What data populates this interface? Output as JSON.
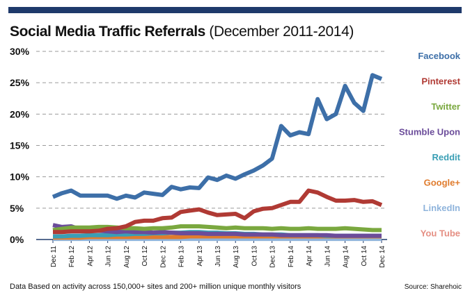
{
  "title": "Social Media Traffic Referrals",
  "subtitle": "(December 2011-2014)",
  "footer": {
    "note": "Data  Based on activity across 150,000+ sites and 200+ million unique monthly visitors",
    "source": "Source: Sharehoic"
  },
  "chart_data": {
    "type": "line",
    "title": "Social Media Traffic Referrals",
    "subtitle": "(December 2011-2014)",
    "xlabel": "",
    "ylabel": "",
    "ylim": [
      0,
      30
    ],
    "yticks": [
      "0%",
      "5%",
      "10%",
      "15%",
      "20%",
      "25%",
      "30%"
    ],
    "grid": "horizontal dashed",
    "legend_position": "right",
    "x_tick_labels": [
      "Dec 11",
      "Feb 12",
      "Apr 12",
      "Jun 12",
      "Aug 12",
      "Oct 12",
      "Dec 12",
      "Feb 13",
      "Apr 13",
      "Jun 13",
      "Aug 13",
      "Oct 13",
      "Dec 13",
      "Feb 14",
      "Apr 14",
      "Jun 14",
      "Aug 14",
      "Oct 14",
      "Dec 14"
    ],
    "x": [
      "Dec 11",
      "Jan 12",
      "Feb 12",
      "Mar 12",
      "Apr 12",
      "May 12",
      "Jun 12",
      "Jul 12",
      "Aug 12",
      "Sep 12",
      "Oct 12",
      "Nov 12",
      "Dec 12",
      "Jan 13",
      "Feb 13",
      "Mar 13",
      "Apr 13",
      "May 13",
      "Jun 13",
      "Jul 13",
      "Aug 13",
      "Sep 13",
      "Oct 13",
      "Nov 13",
      "Dec 13",
      "Jan 14",
      "Feb 14",
      "Mar 14",
      "Apr 14",
      "May 14",
      "Jun 14",
      "Jul 14",
      "Aug 14",
      "Sep 14",
      "Oct 14",
      "Nov 14",
      "Dec 14"
    ],
    "series": [
      {
        "name": "Facebook",
        "color": "#3d6fa8",
        "values": [
          6.8,
          7.4,
          7.8,
          7.0,
          7.0,
          7.0,
          7.0,
          6.5,
          7.0,
          6.7,
          7.5,
          7.3,
          7.1,
          8.4,
          8.0,
          8.3,
          8.2,
          9.9,
          9.5,
          10.2,
          9.7,
          10.4,
          11.0,
          11.8,
          12.9,
          18.1,
          16.6,
          17.1,
          16.8,
          22.4,
          19.2,
          20.0,
          24.5,
          21.8,
          20.5,
          26.2,
          25.6
        ]
      },
      {
        "name": "Pinterest",
        "color": "#b03a34",
        "values": [
          1.2,
          1.2,
          1.3,
          1.3,
          1.3,
          1.4,
          1.7,
          1.8,
          2.1,
          2.8,
          3.0,
          3.0,
          3.4,
          3.5,
          4.4,
          4.6,
          4.8,
          4.3,
          3.9,
          4.0,
          4.1,
          3.4,
          4.5,
          4.9,
          5.0,
          5.5,
          6.0,
          6.0,
          7.8,
          7.5,
          6.8,
          6.2,
          6.2,
          6.3,
          6.0,
          6.1,
          5.5
        ]
      },
      {
        "name": "Twitter",
        "color": "#7aa83f",
        "values": [
          1.5,
          1.7,
          1.9,
          1.9,
          1.9,
          2.0,
          2.0,
          1.9,
          1.8,
          1.8,
          1.7,
          1.8,
          1.8,
          1.9,
          2.1,
          2.1,
          2.1,
          2.0,
          1.9,
          1.8,
          1.9,
          1.8,
          1.8,
          1.8,
          1.7,
          1.8,
          1.7,
          1.7,
          1.8,
          1.7,
          1.7,
          1.7,
          1.8,
          1.7,
          1.6,
          1.5,
          1.5
        ]
      },
      {
        "name": "Stumble Upon",
        "color": "#6b4c9a",
        "values": [
          2.3,
          2.0,
          2.1,
          1.6,
          1.5,
          1.4,
          1.3,
          1.2,
          1.3,
          1.2,
          1.2,
          1.1,
          1.2,
          1.1,
          1.0,
          1.0,
          1.0,
          0.9,
          0.9,
          0.9,
          0.9,
          0.8,
          0.8,
          0.8,
          0.8,
          0.7,
          0.7,
          0.7,
          0.7,
          0.7,
          0.7,
          0.6,
          0.6,
          0.6,
          0.6,
          0.6,
          0.6
        ]
      },
      {
        "name": "Reddit",
        "color": "#3a9fb5",
        "values": [
          0.5,
          0.5,
          0.6,
          0.6,
          0.7,
          0.7,
          0.7,
          0.8,
          0.8,
          0.9,
          0.9,
          1.0,
          1.0,
          1.1,
          1.1,
          1.2,
          1.2,
          1.1,
          1.1,
          1.0,
          1.0,
          0.9,
          0.9,
          0.8,
          0.8,
          0.8,
          0.7,
          0.7,
          0.7,
          0.7,
          0.6,
          0.6,
          0.6,
          0.6,
          0.6,
          0.6,
          0.6
        ]
      },
      {
        "name": "Google+",
        "color": "#e07c2e",
        "values": [
          0.3,
          0.3,
          0.3,
          0.3,
          0.4,
          0.4,
          0.4,
          0.4,
          0.4,
          0.4,
          0.4,
          0.4,
          0.4,
          0.4,
          0.4,
          0.5,
          0.5,
          0.5,
          0.5,
          0.5,
          0.5,
          0.5,
          0.5,
          0.5,
          0.5,
          0.5,
          0.5,
          0.5,
          0.5,
          0.5,
          0.5,
          0.5,
          0.5,
          0.5,
          0.5,
          0.5,
          0.5
        ]
      },
      {
        "name": "LinkedIn",
        "color": "#8fb4dc",
        "values": [
          0.1,
          0.1,
          0.1,
          0.1,
          0.1,
          0.1,
          0.1,
          0.1,
          0.1,
          0.1,
          0.1,
          0.1,
          0.1,
          0.1,
          0.1,
          0.1,
          0.1,
          0.1,
          0.1,
          0.1,
          0.1,
          0.1,
          0.1,
          0.1,
          0.1,
          0.1,
          0.1,
          0.1,
          0.1,
          0.1,
          0.1,
          0.1,
          0.1,
          0.1,
          0.1,
          0.1,
          0.1
        ]
      },
      {
        "name": "You Tube",
        "color": "#e58f83",
        "values": [
          0.2,
          0.2,
          0.2,
          0.2,
          0.2,
          0.2,
          0.2,
          0.2,
          0.2,
          0.2,
          0.2,
          0.2,
          0.2,
          0.2,
          0.2,
          0.2,
          0.2,
          0.2,
          0.2,
          0.2,
          0.2,
          0.2,
          0.2,
          0.2,
          0.2,
          0.2,
          0.2,
          0.2,
          0.2,
          0.2,
          0.2,
          0.2,
          0.2,
          0.2,
          0.2,
          0.2,
          0.2
        ]
      }
    ]
  }
}
